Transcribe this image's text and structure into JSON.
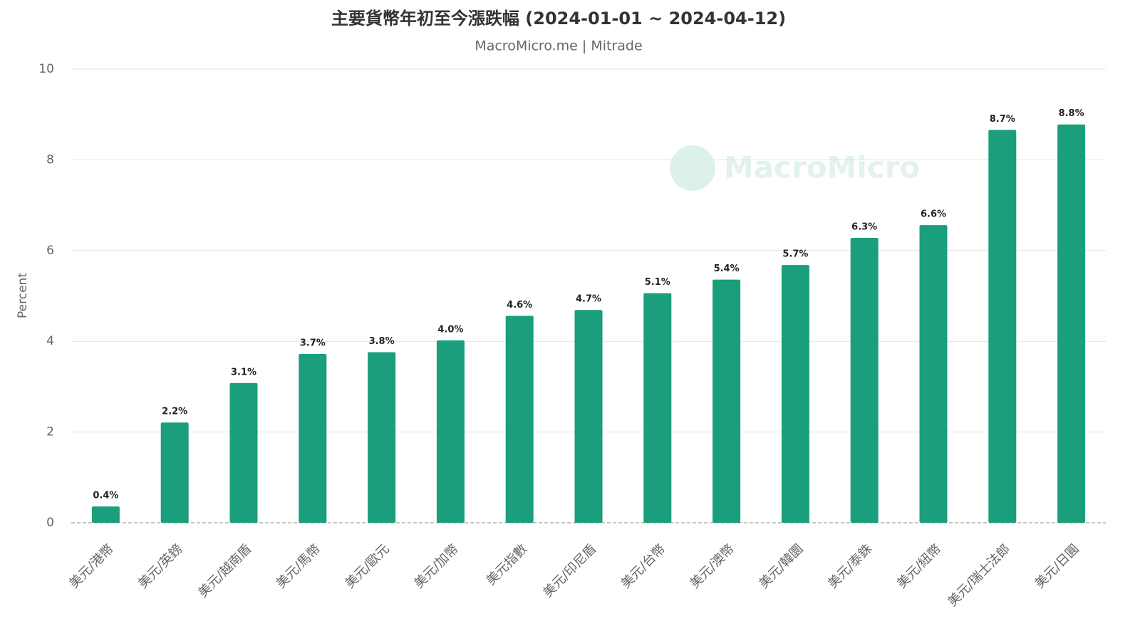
{
  "chart_data": {
    "type": "bar",
    "title": "主要貨幣年初至今漲跌幅 (2024-01-01 ~ 2024-04-12)",
    "subtitle": "MacroMicro.me | Mitrade",
    "watermark": "MacroMicro",
    "y_label": "Percent",
    "categories": [
      "美元/港幣",
      "美元/英鎊",
      "美元/越南盾",
      "美元/馬幣",
      "美元/歐元",
      "美元/加幣",
      "美元指數",
      "美元/印尼盾",
      "美元/台幣",
      "美元/澳幣",
      "美元/韓圜",
      "美元/泰銖",
      "美元/紐幣",
      "美元/瑞士法郎",
      "美元/日圓"
    ],
    "values": [
      0.36,
      2.21,
      3.08,
      3.72,
      3.76,
      4.02,
      4.56,
      4.69,
      5.06,
      5.36,
      5.68,
      6.28,
      6.56,
      8.66,
      8.78
    ],
    "value_labels": [
      "0.4%",
      "2.2%",
      "3.1%",
      "3.7%",
      "3.8%",
      "4.0%",
      "4.6%",
      "4.7%",
      "5.1%",
      "5.4%",
      "5.7%",
      "6.3%",
      "6.6%",
      "8.7%",
      "8.8%"
    ],
    "color": "#1a9e7c",
    "ylim": [
      0,
      10
    ],
    "yticks": [
      0,
      2,
      4,
      6,
      8,
      10
    ],
    "grid": true
  }
}
